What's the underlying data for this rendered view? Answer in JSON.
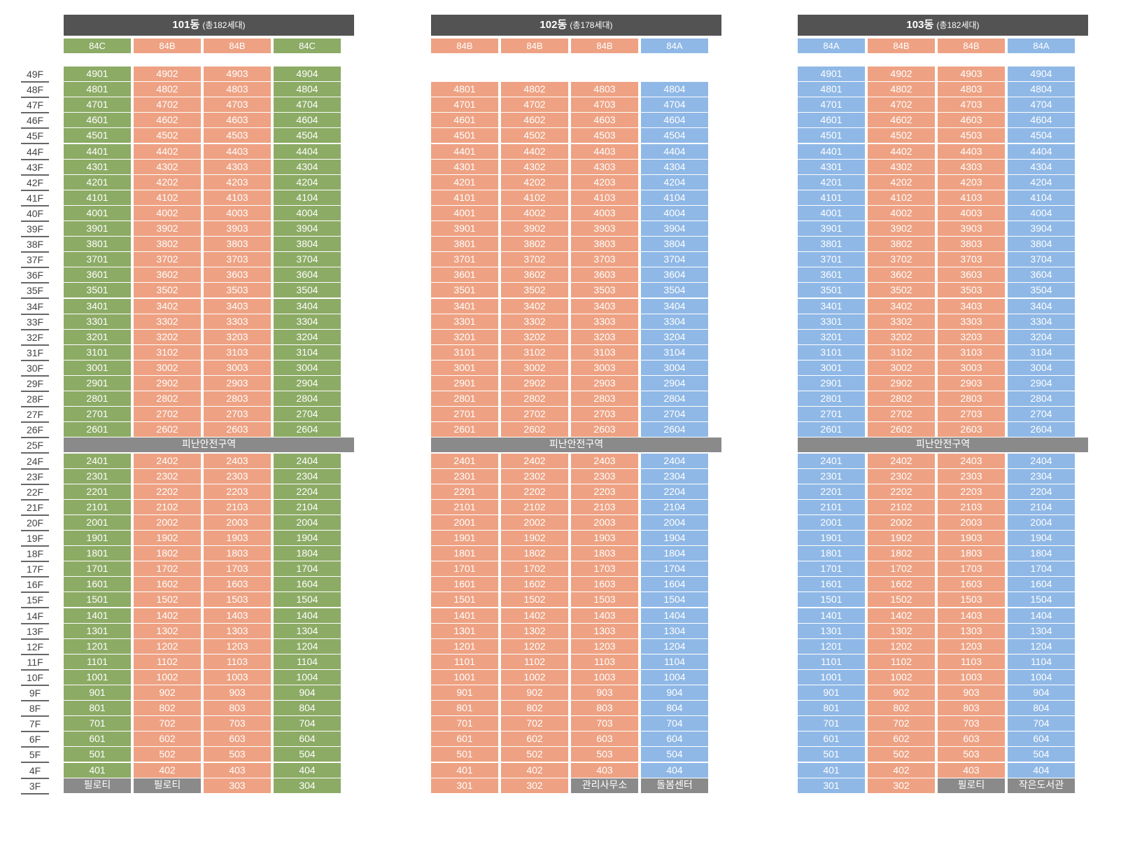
{
  "colors": {
    "84A": "#8fb8e6",
    "84B": "#eea283",
    "84C": "#8cab65",
    "special": "#8a8a8a",
    "header": "#535353",
    "refuge": "#8a8a8a"
  },
  "floors": [
    "49F",
    "48F",
    "47F",
    "46F",
    "45F",
    "44F",
    "43F",
    "42F",
    "41F",
    "40F",
    "39F",
    "38F",
    "37F",
    "36F",
    "35F",
    "34F",
    "33F",
    "32F",
    "31F",
    "30F",
    "29F",
    "28F",
    "27F",
    "26F",
    "25F",
    "24F",
    "23F",
    "22F",
    "21F",
    "20F",
    "19F",
    "18F",
    "17F",
    "16F",
    "15F",
    "14F",
    "13F",
    "12F",
    "11F",
    "10F",
    "9F",
    "8F",
    "7F",
    "6F",
    "5F",
    "4F",
    "3F"
  ],
  "refuge_label": "피난안전구역",
  "buildings": [
    {
      "id": "101",
      "name": "101동",
      "subtitle": "(총182세대)",
      "types": [
        "84C",
        "84B",
        "84B",
        "84C"
      ],
      "top_floor": 49,
      "ground_cells": [
        {
          "label": "필로티",
          "kind": "special"
        },
        {
          "label": "필로티",
          "kind": "special"
        },
        {
          "label": "303",
          "kind": "unit"
        },
        {
          "label": "304",
          "kind": "unit"
        }
      ]
    },
    {
      "id": "102",
      "name": "102동",
      "subtitle": "(총178세대)",
      "types": [
        "84B",
        "84B",
        "84B",
        "84A"
      ],
      "top_floor": 48,
      "ground_cells": [
        {
          "label": "301",
          "kind": "unit"
        },
        {
          "label": "302",
          "kind": "unit"
        },
        {
          "label": "관리사무소",
          "kind": "special"
        },
        {
          "label": "돌봄센터",
          "kind": "special"
        }
      ]
    },
    {
      "id": "103",
      "name": "103동",
      "subtitle": "(총182세대)",
      "types": [
        "84A",
        "84B",
        "84B",
        "84A"
      ],
      "top_floor": 49,
      "ground_cells": [
        {
          "label": "301",
          "kind": "unit"
        },
        {
          "label": "302",
          "kind": "unit"
        },
        {
          "label": "필로티",
          "kind": "special"
        },
        {
          "label": "작은도서관",
          "kind": "special"
        }
      ]
    }
  ]
}
